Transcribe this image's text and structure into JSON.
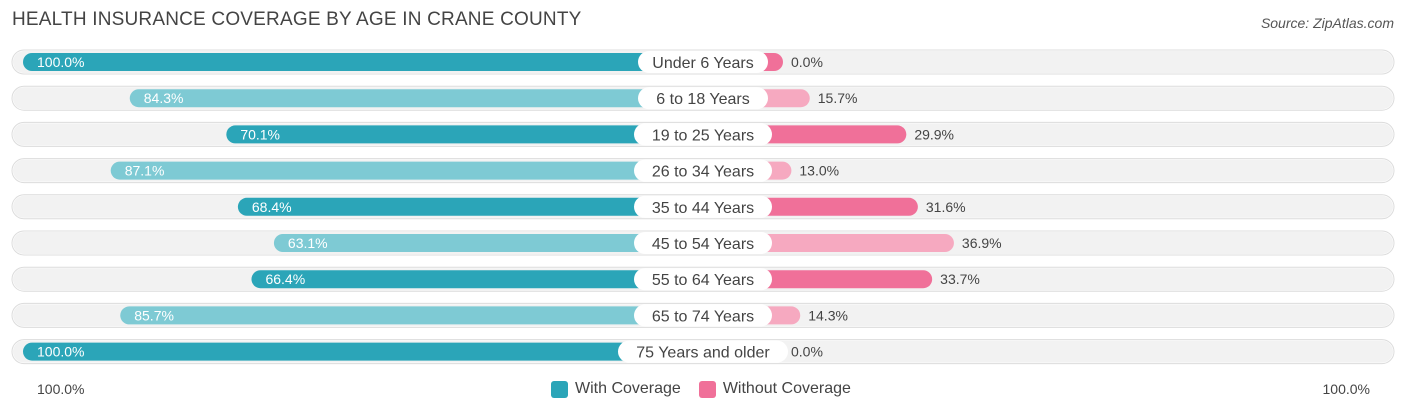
{
  "header": {
    "title": "HEALTH INSURANCE COVERAGE BY AGE IN CRANE COUNTY",
    "source": "Source: ZipAtlas.com"
  },
  "axis": {
    "left_label": "100.0%",
    "right_label": "100.0%"
  },
  "legend": {
    "with_label": "With Coverage",
    "without_label": "Without Coverage"
  },
  "colors": {
    "with_strong": "#2ba5b8",
    "with_light": "#7ecad4",
    "without_strong": "#f07099",
    "without_light": "#f6a9c0",
    "track": "#f2f2f2"
  },
  "chart_data": {
    "type": "bar",
    "orientation": "horizontal-diverging",
    "title": "HEALTH INSURANCE COVERAGE BY AGE IN CRANE COUNTY",
    "categories": [
      "Under 6 Years",
      "6 to 18 Years",
      "19 to 25 Years",
      "26 to 34 Years",
      "35 to 44 Years",
      "45 to 54 Years",
      "55 to 64 Years",
      "65 to 74 Years",
      "75 Years and older"
    ],
    "series": [
      {
        "name": "With Coverage",
        "values": [
          100.0,
          84.3,
          70.1,
          87.1,
          68.4,
          63.1,
          66.4,
          85.7,
          100.0
        ],
        "labels": [
          "100.0%",
          "84.3%",
          "70.1%",
          "87.1%",
          "68.4%",
          "63.1%",
          "66.4%",
          "85.7%",
          "100.0%"
        ]
      },
      {
        "name": "Without Coverage",
        "values": [
          0.0,
          15.7,
          29.9,
          13.0,
          31.6,
          36.9,
          33.7,
          14.3,
          0.0
        ],
        "labels": [
          "0.0%",
          "15.7%",
          "29.9%",
          "13.0%",
          "31.6%",
          "36.9%",
          "33.7%",
          "14.3%",
          "0.0%"
        ]
      }
    ],
    "xlim": [
      -100,
      100
    ],
    "legend_position": "bottom-center"
  }
}
